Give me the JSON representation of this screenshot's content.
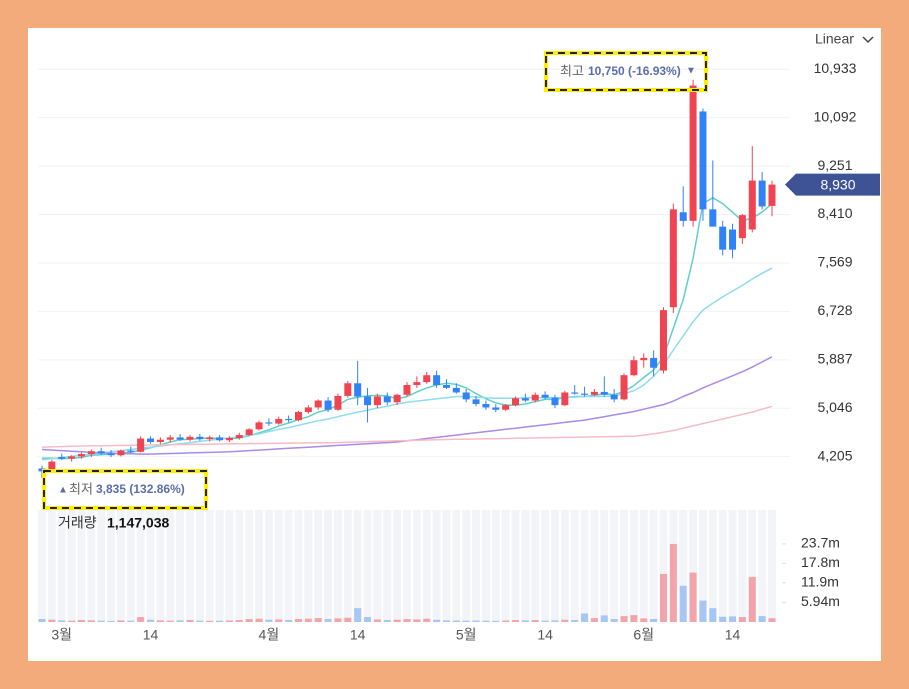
{
  "chart_data": {
    "type": "candlestick",
    "scale_menu": "Linear",
    "categories": [
      null,
      null,
      "3월",
      null,
      null,
      null,
      null,
      null,
      null,
      null,
      null,
      "14",
      null,
      null,
      null,
      null,
      null,
      null,
      null,
      null,
      null,
      null,
      null,
      "4월",
      null,
      null,
      null,
      null,
      null,
      null,
      null,
      null,
      "14",
      null,
      null,
      null,
      null,
      null,
      null,
      null,
      null,
      null,
      null,
      "5월",
      null,
      null,
      null,
      null,
      null,
      null,
      null,
      "14",
      null,
      null,
      null,
      null,
      null,
      null,
      null,
      null,
      null,
      "6월",
      null,
      null,
      null,
      null,
      null,
      null,
      null,
      null,
      "14",
      null,
      null,
      null,
      null
    ],
    "open": [
      4000,
      3950,
      4200,
      4170,
      4210,
      4250,
      4300,
      4260,
      4230,
      4310,
      4290,
      4520,
      4460,
      4500,
      4540,
      4500,
      4550,
      4510,
      4540,
      4490,
      4530,
      4580,
      4680,
      4800,
      4780,
      4860,
      4840,
      4980,
      5060,
      5180,
      5020,
      5260,
      5480,
      5250,
      5100,
      5250,
      5150,
      5280,
      5450,
      5500,
      5620,
      5450,
      5400,
      5320,
      5200,
      5120,
      5060,
      5020,
      5100,
      5220,
      5180,
      5280,
      5230,
      5100,
      5320,
      5300,
      5280,
      5330,
      5280,
      5200,
      5620,
      5880,
      5920,
      5700,
      6800,
      8450,
      8300,
      10200,
      8500,
      8200,
      8150,
      8000,
      8150,
      9000,
      8560
    ],
    "high": [
      4050,
      4150,
      4260,
      4230,
      4280,
      4330,
      4360,
      4320,
      4330,
      4380,
      4560,
      4560,
      4540,
      4580,
      4600,
      4580,
      4600,
      4570,
      4580,
      4560,
      4620,
      4700,
      4830,
      4870,
      4900,
      4920,
      5000,
      5100,
      5200,
      5240,
      5300,
      5520,
      5870,
      5400,
      5300,
      5320,
      5300,
      5500,
      5600,
      5680,
      5700,
      5550,
      5480,
      5380,
      5260,
      5180,
      5120,
      5120,
      5250,
      5300,
      5320,
      5340,
      5280,
      5350,
      5450,
      5420,
      5380,
      5600,
      5380,
      5650,
      5950,
      6000,
      6050,
      6800,
      8600,
      8900,
      10750,
      10250,
      9350,
      8300,
      8250,
      8420,
      9600,
      9150,
      9000
    ],
    "low": [
      3835,
      3940,
      4150,
      4120,
      4170,
      4200,
      4240,
      4200,
      4210,
      4270,
      4280,
      4430,
      4420,
      4450,
      4480,
      4470,
      4480,
      4470,
      4470,
      4460,
      4500,
      4560,
      4660,
      4740,
      4760,
      4800,
      4820,
      4950,
      5020,
      4980,
      5000,
      5230,
      5100,
      4800,
      5050,
      5100,
      5100,
      5250,
      5400,
      5470,
      5400,
      5380,
      5300,
      5150,
      5080,
      5020,
      4980,
      5000,
      5080,
      5150,
      5150,
      5200,
      5050,
      5080,
      5280,
      5250,
      5260,
      5250,
      5150,
      5180,
      5600,
      5750,
      5600,
      5650,
      6700,
      8200,
      8200,
      8300,
      8200,
      7700,
      7650,
      7900,
      8100,
      8500,
      8380
    ],
    "close": [
      3950,
      4120,
      4170,
      4210,
      4250,
      4300,
      4260,
      4230,
      4310,
      4290,
      4520,
      4460,
      4500,
      4540,
      4500,
      4550,
      4510,
      4540,
      4490,
      4530,
      4580,
      4680,
      4800,
      4780,
      4860,
      4840,
      4980,
      5060,
      5180,
      5020,
      5260,
      5480,
      5250,
      5100,
      5250,
      5150,
      5280,
      5450,
      5500,
      5620,
      5450,
      5400,
      5320,
      5200,
      5120,
      5060,
      5020,
      5100,
      5220,
      5180,
      5280,
      5230,
      5100,
      5320,
      5300,
      5280,
      5330,
      5280,
      5200,
      5620,
      5880,
      5920,
      5750,
      6750,
      8500,
      8300,
      10650,
      8500,
      8200,
      7800,
      7800,
      8400,
      9000,
      8550,
      8930
    ],
    "volume": [
      900000,
      700000,
      500000,
      400000,
      600000,
      500000,
      400000,
      300000,
      500000,
      400000,
      1500000,
      700000,
      500000,
      400000,
      500000,
      600000,
      400000,
      350000,
      400000,
      450000,
      600000,
      900000,
      1000000,
      700000,
      800000,
      600000,
      900000,
      1000000,
      1200000,
      900000,
      1100000,
      1300000,
      4200000,
      1500000,
      800000,
      600000,
      700000,
      900000,
      800000,
      1000000,
      700000,
      500000,
      450000,
      400000,
      450000,
      400000,
      350000,
      450000,
      600000,
      500000,
      600000,
      400000,
      500000,
      700000,
      600000,
      2600000,
      1200000,
      2000000,
      900000,
      1800000,
      2100000,
      1100000,
      900000,
      14600000,
      23700000,
      11000000,
      15000000,
      6500000,
      4200000,
      1600000,
      1700000,
      1500000,
      13700000,
      1800000,
      1147038
    ],
    "up_color": "#f04452",
    "down_color": "#3182f6",
    "up_volume_color": "#f3a4ab",
    "down_volume_color": "#a6c6f4",
    "moving_averages": [
      {
        "color": "#5fd0c8",
        "values": [
          4180,
          4180,
          4170,
          4180,
          4190,
          4230,
          4240,
          4250,
          4270,
          4280,
          4320,
          4360,
          4410,
          4460,
          4500,
          4510,
          4520,
          4530,
          4520,
          4520,
          4530,
          4570,
          4620,
          4670,
          4740,
          4790,
          4850,
          4900,
          4980,
          5020,
          5100,
          5200,
          5240,
          5260,
          5270,
          5260,
          5210,
          5250,
          5330,
          5400,
          5450,
          5480,
          5460,
          5400,
          5300,
          5210,
          5140,
          5100,
          5100,
          5120,
          5160,
          5200,
          5200,
          5230,
          5250,
          5250,
          5270,
          5300,
          5280,
          5340,
          5440,
          5580,
          5710,
          5940,
          6440,
          6930,
          7650,
          8600,
          8700,
          8600,
          8450,
          8300,
          8350,
          8450,
          8600
        ]
      },
      {
        "color": "#8fdcef",
        "values": [
          4150,
          4170,
          4190,
          4210,
          4230,
          4250,
          4270,
          4290,
          4310,
          4330,
          4350,
          4370,
          4390,
          4410,
          4430,
          4450,
          4470,
          4490,
          4510,
          4530,
          4550,
          4575,
          4600,
          4640,
          4680,
          4710,
          4750,
          4790,
          4830,
          4860,
          4900,
          4940,
          4980,
          5010,
          5050,
          5080,
          5120,
          5150,
          5170,
          5190,
          5210,
          5230,
          5250,
          5250,
          5240,
          5230,
          5220,
          5220,
          5220,
          5230,
          5230,
          5230,
          5230,
          5240,
          5240,
          5250,
          5250,
          5250,
          5260,
          5300,
          5350,
          5450,
          5600,
          5800,
          6060,
          6300,
          6550,
          6750,
          6870,
          6980,
          7080,
          7180,
          7290,
          7390,
          7480
        ]
      },
      {
        "color": "#a98be8",
        "values": [
          4330,
          4320,
          4310,
          4300,
          4290,
          4280,
          4270,
          4265,
          4260,
          4255,
          4250,
          4250,
          4255,
          4260,
          4265,
          4270,
          4275,
          4280,
          4285,
          4290,
          4300,
          4310,
          4320,
          4330,
          4340,
          4350,
          4360,
          4370,
          4380,
          4390,
          4400,
          4410,
          4420,
          4430,
          4440,
          4450,
          4460,
          4480,
          4500,
          4520,
          4540,
          4560,
          4580,
          4600,
          4620,
          4640,
          4660,
          4680,
          4700,
          4720,
          4740,
          4760,
          4780,
          4800,
          4820,
          4840,
          4870,
          4900,
          4930,
          4960,
          4990,
          5030,
          5070,
          5110,
          5170,
          5250,
          5320,
          5400,
          5470,
          5540,
          5610,
          5680,
          5760,
          5850,
          5940
        ]
      },
      {
        "color": "#f7bcc3",
        "values": [
          4370,
          4375,
          4380,
          4385,
          4390,
          4392,
          4395,
          4398,
          4400,
          4403,
          4405,
          4408,
          4410,
          4413,
          4415,
          4418,
          4420,
          4422,
          4425,
          4427,
          4430,
          4432,
          4434,
          4436,
          4438,
          4440,
          4442,
          4444,
          4446,
          4448,
          4450,
          4455,
          4460,
          4465,
          4470,
          4475,
          4480,
          4485,
          4490,
          4495,
          4500,
          4503,
          4506,
          4509,
          4512,
          4515,
          4518,
          4521,
          4524,
          4527,
          4530,
          4533,
          4536,
          4539,
          4542,
          4545,
          4548,
          4551,
          4554,
          4557,
          4560,
          4580,
          4600,
          4630,
          4660,
          4700,
          4740,
          4780,
          4820,
          4860,
          4900,
          4940,
          4980,
          5030,
          5080
        ]
      }
    ],
    "ylim": [
      3800,
      11250
    ],
    "yticks": [
      {
        "value": 4205,
        "label": "4,205"
      },
      {
        "value": 5046,
        "label": "5,046"
      },
      {
        "value": 5887,
        "label": "5,887"
      },
      {
        "value": 6728,
        "label": "6,728"
      },
      {
        "value": 7569,
        "label": "7,569"
      },
      {
        "value": 8410,
        "label": "8,410"
      },
      {
        "value": 9251,
        "label": "9,251"
      },
      {
        "value": 10092,
        "label": "10,092"
      },
      {
        "value": 10933,
        "label": "10,933"
      }
    ],
    "volume_ylim": [
      0,
      34000000
    ],
    "volume_yticks": [
      {
        "value": 5940000,
        "label": "5.94m"
      },
      {
        "value": 11900000,
        "label": "11.9m"
      },
      {
        "value": 17800000,
        "label": "17.8m"
      },
      {
        "value": 23700000,
        "label": "23.7m"
      }
    ],
    "last_price": {
      "value": 8930,
      "label": "8,930",
      "color": "#3e5296"
    },
    "high_note": {
      "label": "최고",
      "value": "10,750 (-16.93%)",
      "marker": "▼"
    },
    "low_note": {
      "marker": "▲",
      "label": "최저",
      "value": "3,835 (132.86%)"
    },
    "volume_caption": {
      "label": "거래량",
      "value": "1,147,038"
    }
  }
}
